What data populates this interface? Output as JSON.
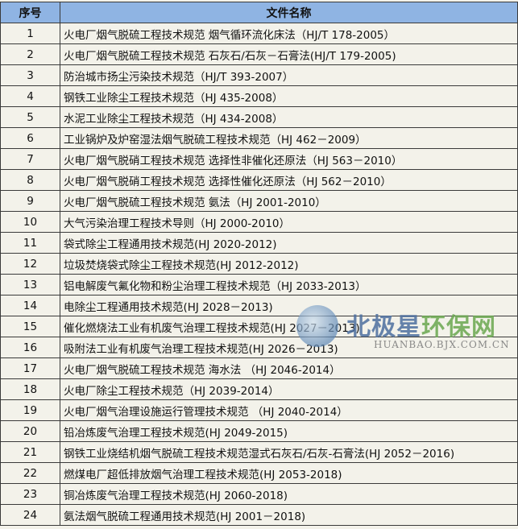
{
  "table": {
    "headers": [
      "序号",
      "文件名称"
    ],
    "rows": [
      {
        "no": "1",
        "name": "火电厂烟气脱硫工程技术规范 烟气循环流化床法（HJ/T 178-2005）"
      },
      {
        "no": "2",
        "name": "火电厂烟气脱硫工程技术规范 石灰石/石灰－石膏法(HJ/T 179-2005)"
      },
      {
        "no": "3",
        "name": "防治城市扬尘污染技术规范（HJ/T 393-2007）"
      },
      {
        "no": "4",
        "name": "钢铁工业除尘工程技术规范（HJ 435-2008）"
      },
      {
        "no": "5",
        "name": "水泥工业除尘工程技术规范（HJ 434-2008）"
      },
      {
        "no": "6",
        "name": "工业锅炉及炉窑湿法烟气脱硫工程技术规范（HJ 462－2009）"
      },
      {
        "no": "7",
        "name": "火电厂烟气脱硝工程技术规范 选择性非催化还原法（HJ 563－2010）"
      },
      {
        "no": "8",
        "name": "火电厂烟气脱硝工程技术规范 选择性催化还原法（HJ 562－2010）"
      },
      {
        "no": "9",
        "name": "火电厂烟气脱硫工程技术规范 氨法（HJ 2001-2010）"
      },
      {
        "no": "10",
        "name": "大气污染治理工程技术导则（HJ 2000-2010）"
      },
      {
        "no": "11",
        "name": "袋式除尘工程通用技术规范(HJ 2020-2012)"
      },
      {
        "no": "12",
        "name": "垃圾焚烧袋式除尘工程技术规范(HJ 2012-2012)"
      },
      {
        "no": "13",
        "name": "铝电解废气氟化物和粉尘治理工程技术规范（HJ 2033-2013）"
      },
      {
        "no": "14",
        "name": "电除尘工程通用技术规范(HJ 2028－2013)"
      },
      {
        "no": "15",
        "name": "催化燃烧法工业有机废气治理工程技术规范(HJ 2027－2013)"
      },
      {
        "no": "16",
        "name": "吸附法工业有机废气治理工程技术规范(HJ 2026－2013)"
      },
      {
        "no": "17",
        "name": "火电厂烟气脱硫工程技术规范 海水法 （HJ 2046-2014）"
      },
      {
        "no": "18",
        "name": "火电厂除尘工程技术规范（HJ 2039-2014）"
      },
      {
        "no": "19",
        "name": "火电厂烟气治理设施运行管理技术规范 （HJ 2040-2014）"
      },
      {
        "no": "20",
        "name": "铅冶炼废气治理工程技术规范(HJ 2049-2015)"
      },
      {
        "no": "21",
        "name": "钢铁工业烧结机烟气脱硫工程技术规范湿式石灰石/石灰-石膏法(HJ 2052－2016)"
      },
      {
        "no": "22",
        "name": "燃煤电厂超低排放烟气治理工程技术规范(HJ 2053-2018)"
      },
      {
        "no": "23",
        "name": "铜冶炼废气治理工程技术规范(HJ 2060-2018)"
      },
      {
        "no": "24",
        "name": "氨法烟气脱硫工程通用技术规范(HJ 2001－2018)"
      }
    ]
  },
  "watermark": {
    "cn_part1": "北极星",
    "cn_part2": "环保网",
    "en": "HUANBAO.BJX.COM.CN"
  },
  "colors": {
    "header_bg": "#8fb4e3",
    "body_bg": "#f3f2ea"
  }
}
